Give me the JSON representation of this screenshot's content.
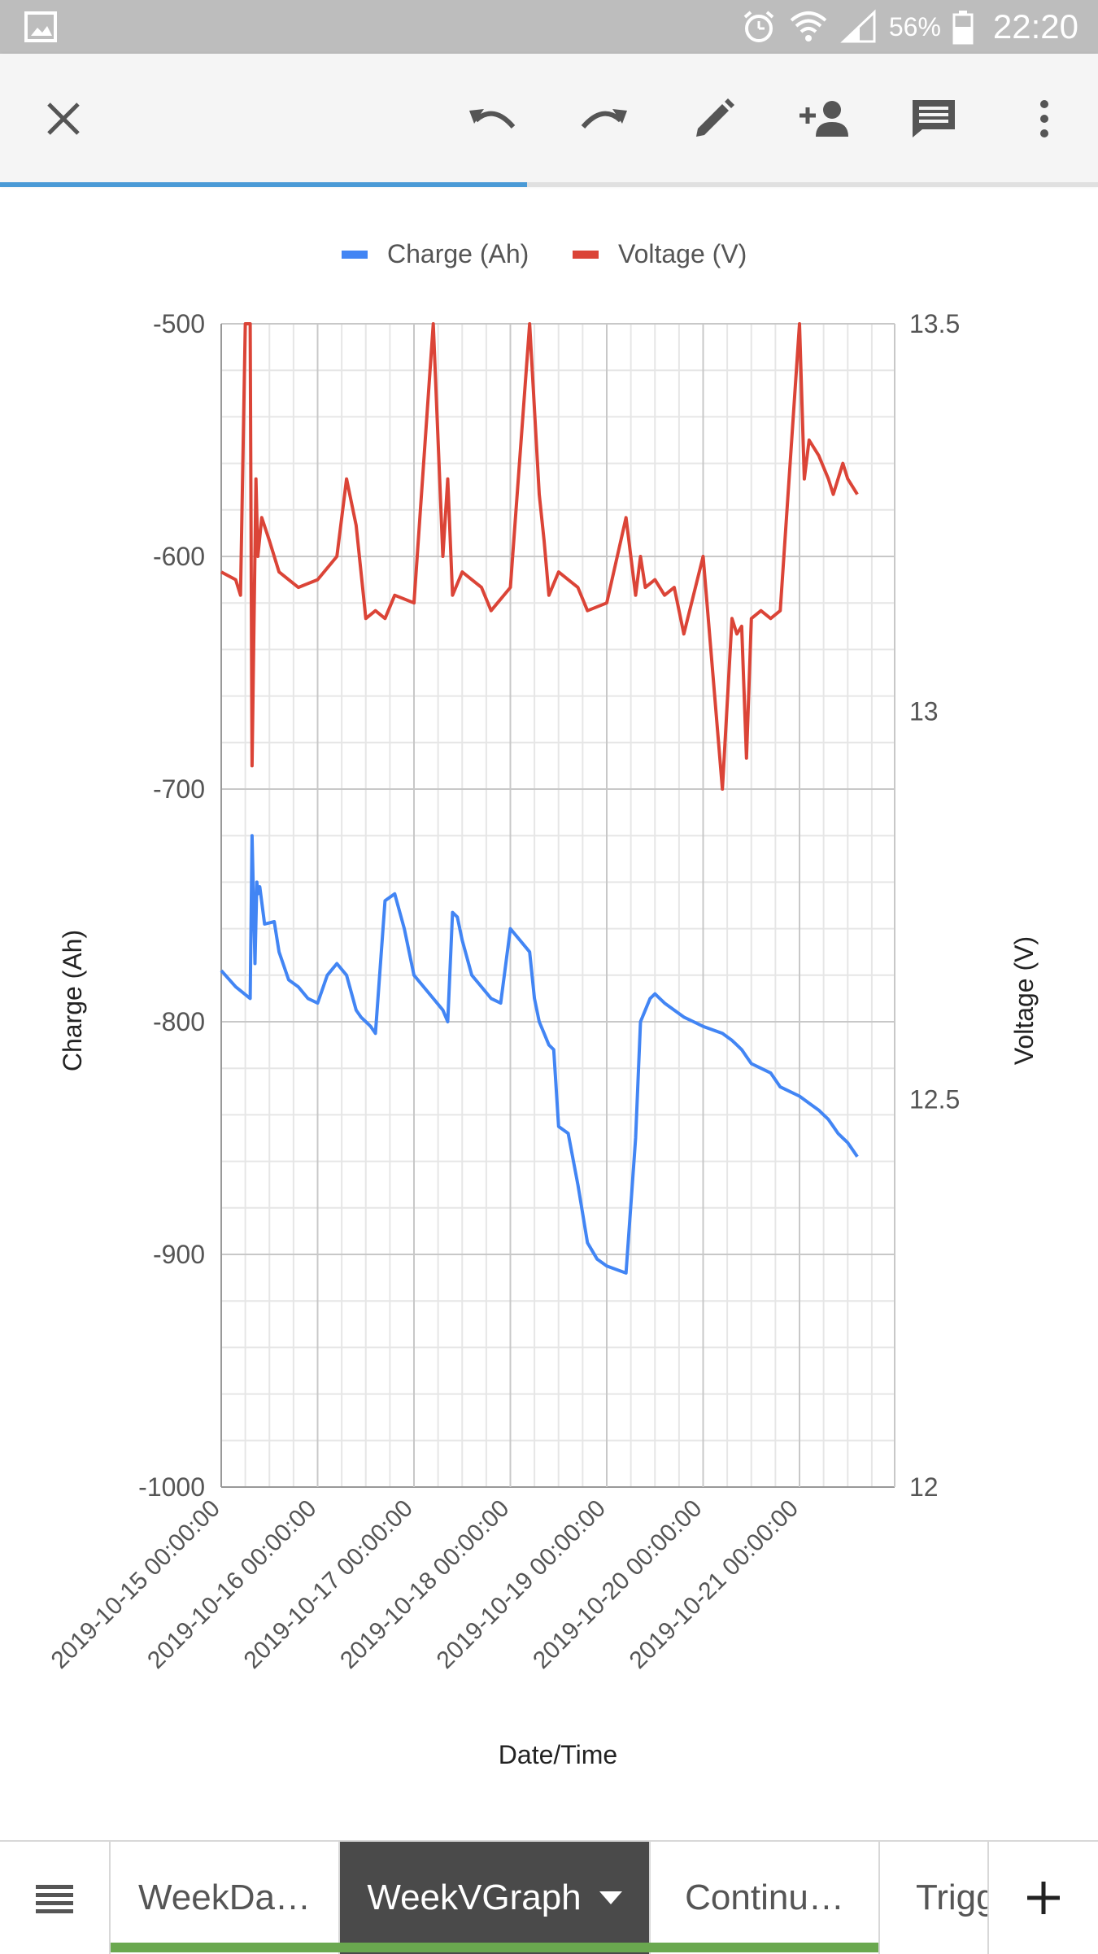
{
  "status_bar": {
    "battery_percent": "56%",
    "time": "22:20"
  },
  "toolbar": {
    "close_icon": "close-icon",
    "actions": [
      "undo-icon",
      "redo-icon",
      "pencil-icon",
      "add-person-icon",
      "comment-icon",
      "more-vert-icon"
    ]
  },
  "load_progress": 0.48,
  "chart_data": {
    "type": "line",
    "legend": {
      "placement": "top",
      "entries": [
        "Charge (Ah)",
        "Voltage (V)"
      ]
    },
    "xlabel": "Date/Time",
    "x_ticks": [
      "2019-10-15 00:00:00",
      "2019-10-16 00:00:00",
      "2019-10-17 00:00:00",
      "2019-10-18 00:00:00",
      "2019-10-19 00:00:00",
      "2019-10-20 00:00:00",
      "2019-10-21 00:00:00"
    ],
    "y_left": {
      "label": "Charge (Ah)",
      "range": [
        -1000,
        -500
      ],
      "ticks": [
        "-500",
        "-600",
        "-700",
        "-800",
        "-900",
        "-1000"
      ]
    },
    "y_right": {
      "label": "Voltage (V)",
      "range": [
        12,
        13.5
      ],
      "ticks": [
        "13.5",
        "13",
        "12.5",
        "12"
      ]
    },
    "grid": true,
    "colors": {
      "charge": "#4285f4",
      "voltage": "#db4437"
    },
    "series": [
      {
        "name": "Charge (Ah)",
        "axis": "left",
        "x_days": [
          0,
          0.15,
          0.3,
          0.32,
          0.35,
          0.37,
          0.38,
          0.4,
          0.45,
          0.55,
          0.6,
          0.7,
          0.8,
          0.9,
          1.0,
          1.1,
          1.2,
          1.3,
          1.4,
          1.45,
          1.5,
          1.55,
          1.6,
          1.7,
          1.8,
          1.9,
          2.0,
          2.2,
          2.3,
          2.35,
          2.4,
          2.45,
          2.5,
          2.6,
          2.7,
          2.8,
          2.9,
          3.0,
          3.2,
          3.25,
          3.3,
          3.35,
          3.4,
          3.45,
          3.5,
          3.6,
          3.7,
          3.8,
          3.9,
          4.0,
          4.2,
          4.3,
          4.35,
          4.4,
          4.45,
          4.5,
          4.55,
          4.6,
          4.7,
          4.8,
          4.9,
          5.0,
          5.2,
          5.3,
          5.35,
          5.4,
          5.45,
          5.5,
          5.6,
          5.7,
          5.75,
          5.8,
          5.9,
          6.0,
          6.1,
          6.2,
          6.25,
          6.3,
          6.35,
          6.4,
          6.45,
          6.5,
          6.55,
          6.6
        ],
        "values": [
          -778,
          -785,
          -790,
          -720,
          -775,
          -740,
          -745,
          -742,
          -758,
          -757,
          -770,
          -782,
          -785,
          -790,
          -792,
          -780,
          -775,
          -780,
          -795,
          -798,
          -800,
          -802,
          -805,
          -748,
          -745,
          -760,
          -780,
          -790,
          -795,
          -800,
          -753,
          -755,
          -765,
          -780,
          -785,
          -790,
          -792,
          -760,
          -770,
          -790,
          -800,
          -805,
          -810,
          -812,
          -845,
          -848,
          -870,
          -895,
          -902,
          -905,
          -908,
          -850,
          -800,
          -795,
          -790,
          -788,
          -790,
          -792,
          -795,
          -798,
          -800,
          -802,
          -805,
          -808,
          -810,
          -812,
          -815,
          -818,
          -820,
          -822,
          -825,
          -828,
          -830,
          -832,
          -835,
          -838,
          -840,
          -842,
          -845,
          -848,
          -850,
          -852,
          -855,
          -858
        ]
      },
      {
        "name": "Voltage (V)",
        "axis": "right",
        "x_days": [
          0,
          0.15,
          0.2,
          0.25,
          0.3,
          0.32,
          0.36,
          0.38,
          0.42,
          0.5,
          0.6,
          0.7,
          0.8,
          1.0,
          1.2,
          1.3,
          1.4,
          1.5,
          1.6,
          1.7,
          1.8,
          2.0,
          2.2,
          2.3,
          2.35,
          2.4,
          2.5,
          2.6,
          2.7,
          2.8,
          3.0,
          3.2,
          3.3,
          3.35,
          3.4,
          3.5,
          3.6,
          3.7,
          3.8,
          4.0,
          4.2,
          4.3,
          4.35,
          4.4,
          4.5,
          4.6,
          4.7,
          4.8,
          5.0,
          5.2,
          5.3,
          5.35,
          5.4,
          5.45,
          5.5,
          5.6,
          5.7,
          5.8,
          6.0,
          6.05,
          6.1,
          6.2,
          6.3,
          6.35,
          6.4,
          6.45,
          6.5,
          6.55,
          6.6
        ],
        "values": [
          13.18,
          13.17,
          13.15,
          13.5,
          13.5,
          12.93,
          13.3,
          13.2,
          13.25,
          13.22,
          13.18,
          13.17,
          13.16,
          13.17,
          13.2,
          13.3,
          13.24,
          13.12,
          13.13,
          13.12,
          13.15,
          13.14,
          13.5,
          13.2,
          13.3,
          13.15,
          13.18,
          13.17,
          13.16,
          13.13,
          13.16,
          13.5,
          13.28,
          13.22,
          13.15,
          13.18,
          13.17,
          13.16,
          13.13,
          13.14,
          13.25,
          13.15,
          13.2,
          13.16,
          13.17,
          13.15,
          13.16,
          13.1,
          13.2,
          12.9,
          13.12,
          13.1,
          13.11,
          12.94,
          13.12,
          13.13,
          13.12,
          13.13,
          13.5,
          13.3,
          13.35,
          13.33,
          13.3,
          13.28,
          13.3,
          13.32,
          13.3,
          13.29,
          13.28
        ]
      }
    ]
  },
  "tabs": {
    "menu_icon": "menu-icon",
    "items": [
      "WeekDa…",
      "WeekVGraph",
      "Continu…",
      "Trigg"
    ],
    "active_index": 1,
    "add_icon": "plus-icon"
  }
}
